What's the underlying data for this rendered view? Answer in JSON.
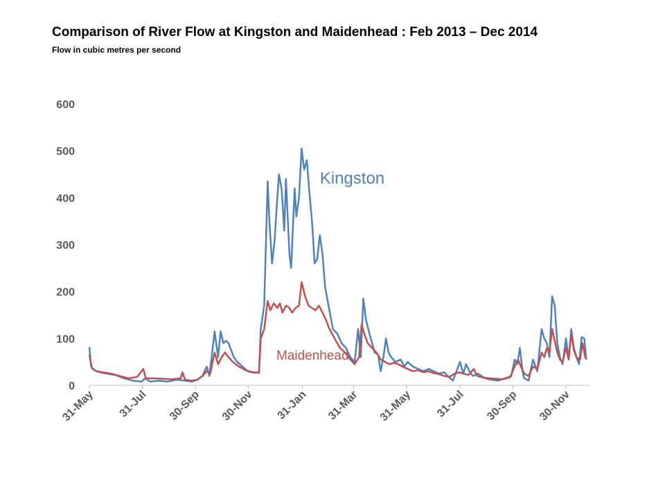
{
  "chart_data": {
    "type": "line",
    "title": "Comparison of River Flow at Kingston and Maidenhead : Feb 2013 – Dec 2014",
    "subtitle": "Flow in cubic metres per second",
    "xlabel": "",
    "ylabel": "",
    "ylim": [
      0,
      600
    ],
    "yticks": [
      "0",
      "100",
      "200",
      "300",
      "400",
      "500",
      "600"
    ],
    "xlim": [
      0,
      575
    ],
    "xticks": [
      {
        "label": "31-May",
        "x": 0
      },
      {
        "label": "31-Jul",
        "x": 61
      },
      {
        "label": "30-Sep",
        "x": 122
      },
      {
        "label": "30-Nov",
        "x": 183
      },
      {
        "label": "31-Jan",
        "x": 245
      },
      {
        "label": "31-Mar",
        "x": 304
      },
      {
        "label": "31-May",
        "x": 365
      },
      {
        "label": "31-Jul",
        "x": 426
      },
      {
        "label": "30-Sep",
        "x": 487
      },
      {
        "label": "30-Nov",
        "x": 548
      }
    ],
    "grid": false,
    "series": [
      {
        "name": "Kingston",
        "color": "#4F81BD",
        "points": [
          [
            0,
            82
          ],
          [
            2,
            40
          ],
          [
            6,
            32
          ],
          [
            12,
            28
          ],
          [
            20,
            25
          ],
          [
            30,
            22
          ],
          [
            40,
            15
          ],
          [
            50,
            10
          ],
          [
            60,
            8
          ],
          [
            64,
            15
          ],
          [
            70,
            8
          ],
          [
            80,
            10
          ],
          [
            90,
            8
          ],
          [
            100,
            12
          ],
          [
            110,
            10
          ],
          [
            118,
            8
          ],
          [
            124,
            12
          ],
          [
            130,
            20
          ],
          [
            135,
            40
          ],
          [
            138,
            20
          ],
          [
            144,
            115
          ],
          [
            148,
            60
          ],
          [
            151,
            115
          ],
          [
            154,
            90
          ],
          [
            157,
            95
          ],
          [
            160,
            90
          ],
          [
            163,
            75
          ],
          [
            166,
            60
          ],
          [
            170,
            50
          ],
          [
            176,
            40
          ],
          [
            182,
            30
          ],
          [
            188,
            27
          ],
          [
            195,
            28
          ],
          [
            197,
            120
          ],
          [
            201,
            170
          ],
          [
            205,
            435
          ],
          [
            207,
            350
          ],
          [
            210,
            260
          ],
          [
            213,
            310
          ],
          [
            215,
            370
          ],
          [
            218,
            450
          ],
          [
            221,
            420
          ],
          [
            224,
            330
          ],
          [
            226,
            440
          ],
          [
            230,
            280
          ],
          [
            232,
            250
          ],
          [
            236,
            420
          ],
          [
            238,
            360
          ],
          [
            241,
            400
          ],
          [
            244,
            505
          ],
          [
            247,
            460
          ],
          [
            250,
            480
          ],
          [
            253,
            410
          ],
          [
            256,
            350
          ],
          [
            259,
            260
          ],
          [
            262,
            270
          ],
          [
            265,
            320
          ],
          [
            268,
            280
          ],
          [
            271,
            210
          ],
          [
            275,
            170
          ],
          [
            280,
            120
          ],
          [
            285,
            110
          ],
          [
            290,
            90
          ],
          [
            295,
            80
          ],
          [
            300,
            60
          ],
          [
            305,
            50
          ],
          [
            309,
            120
          ],
          [
            312,
            60
          ],
          [
            315,
            185
          ],
          [
            318,
            140
          ],
          [
            322,
            110
          ],
          [
            325,
            90
          ],
          [
            328,
            70
          ],
          [
            332,
            65
          ],
          [
            335,
            30
          ],
          [
            338,
            60
          ],
          [
            341,
            100
          ],
          [
            344,
            70
          ],
          [
            347,
            60
          ],
          [
            352,
            50
          ],
          [
            358,
            55
          ],
          [
            362,
            40
          ],
          [
            366,
            50
          ],
          [
            372,
            40
          ],
          [
            378,
            35
          ],
          [
            384,
            30
          ],
          [
            390,
            35
          ],
          [
            396,
            30
          ],
          [
            402,
            25
          ],
          [
            408,
            28
          ],
          [
            412,
            20
          ],
          [
            418,
            10
          ],
          [
            422,
            30
          ],
          [
            426,
            50
          ],
          [
            430,
            25
          ],
          [
            433,
            45
          ],
          [
            437,
            30
          ],
          [
            441,
            20
          ],
          [
            447,
            25
          ],
          [
            455,
            15
          ],
          [
            462,
            12
          ],
          [
            470,
            10
          ],
          [
            478,
            15
          ],
          [
            485,
            20
          ],
          [
            489,
            55
          ],
          [
            492,
            45
          ],
          [
            495,
            80
          ],
          [
            498,
            30
          ],
          [
            500,
            15
          ],
          [
            505,
            10
          ],
          [
            510,
            55
          ],
          [
            515,
            30
          ],
          [
            520,
            120
          ],
          [
            523,
            100
          ],
          [
            526,
            90
          ],
          [
            529,
            60
          ],
          [
            532,
            190
          ],
          [
            535,
            170
          ],
          [
            538,
            90
          ],
          [
            541,
            60
          ],
          [
            544,
            45
          ],
          [
            548,
            100
          ],
          [
            551,
            55
          ],
          [
            554,
            120
          ],
          [
            557,
            80
          ],
          [
            560,
            60
          ],
          [
            563,
            45
          ],
          [
            566,
            103
          ],
          [
            569,
            100
          ],
          [
            571,
            60
          ]
        ]
      },
      {
        "name": "Maidenhead",
        "color": "#C0504D",
        "points": [
          [
            0,
            65
          ],
          [
            3,
            36
          ],
          [
            8,
            30
          ],
          [
            15,
            28
          ],
          [
            25,
            25
          ],
          [
            35,
            20
          ],
          [
            45,
            15
          ],
          [
            55,
            18
          ],
          [
            62,
            35
          ],
          [
            65,
            15
          ],
          [
            75,
            15
          ],
          [
            85,
            14
          ],
          [
            95,
            13
          ],
          [
            105,
            15
          ],
          [
            107,
            28
          ],
          [
            110,
            12
          ],
          [
            118,
            10
          ],
          [
            124,
            12
          ],
          [
            130,
            20
          ],
          [
            135,
            30
          ],
          [
            139,
            25
          ],
          [
            144,
            70
          ],
          [
            148,
            45
          ],
          [
            152,
            60
          ],
          [
            156,
            70
          ],
          [
            160,
            60
          ],
          [
            165,
            50
          ],
          [
            172,
            40
          ],
          [
            180,
            32
          ],
          [
            188,
            28
          ],
          [
            195,
            27
          ],
          [
            197,
            100
          ],
          [
            201,
            120
          ],
          [
            205,
            180
          ],
          [
            208,
            160
          ],
          [
            212,
            175
          ],
          [
            216,
            165
          ],
          [
            219,
            175
          ],
          [
            222,
            155
          ],
          [
            226,
            170
          ],
          [
            230,
            165
          ],
          [
            233,
            155
          ],
          [
            237,
            165
          ],
          [
            241,
            170
          ],
          [
            244,
            220
          ],
          [
            248,
            190
          ],
          [
            252,
            170
          ],
          [
            256,
            165
          ],
          [
            260,
            160
          ],
          [
            264,
            170
          ],
          [
            268,
            155
          ],
          [
            272,
            140
          ],
          [
            276,
            120
          ],
          [
            282,
            100
          ],
          [
            288,
            80
          ],
          [
            294,
            70
          ],
          [
            300,
            55
          ],
          [
            305,
            45
          ],
          [
            310,
            60
          ],
          [
            313,
            130
          ],
          [
            316,
            110
          ],
          [
            320,
            90
          ],
          [
            325,
            80
          ],
          [
            330,
            70
          ],
          [
            335,
            55
          ],
          [
            340,
            50
          ],
          [
            345,
            45
          ],
          [
            350,
            48
          ],
          [
            355,
            45
          ],
          [
            360,
            40
          ],
          [
            366,
            35
          ],
          [
            372,
            30
          ],
          [
            378,
            32
          ],
          [
            384,
            28
          ],
          [
            390,
            30
          ],
          [
            396,
            26
          ],
          [
            402,
            24
          ],
          [
            408,
            20
          ],
          [
            414,
            18
          ],
          [
            420,
            25
          ],
          [
            425,
            28
          ],
          [
            430,
            25
          ],
          [
            436,
            22
          ],
          [
            442,
            35
          ],
          [
            446,
            20
          ],
          [
            452,
            17
          ],
          [
            460,
            15
          ],
          [
            468,
            14
          ],
          [
            476,
            13
          ],
          [
            484,
            18
          ],
          [
            490,
            45
          ],
          [
            493,
            55
          ],
          [
            496,
            40
          ],
          [
            500,
            25
          ],
          [
            505,
            20
          ],
          [
            510,
            40
          ],
          [
            515,
            35
          ],
          [
            520,
            70
          ],
          [
            523,
            60
          ],
          [
            526,
            80
          ],
          [
            529,
            70
          ],
          [
            532,
            120
          ],
          [
            535,
            95
          ],
          [
            538,
            70
          ],
          [
            541,
            55
          ],
          [
            544,
            50
          ],
          [
            548,
            80
          ],
          [
            551,
            55
          ],
          [
            554,
            110
          ],
          [
            557,
            75
          ],
          [
            560,
            60
          ],
          [
            564,
            55
          ],
          [
            567,
            90
          ],
          [
            570,
            60
          ],
          [
            572,
            55
          ]
        ]
      }
    ],
    "annotations": [
      {
        "text": "Kingston",
        "series": "Kingston",
        "x": 265,
        "y": 430
      },
      {
        "text": "Maidenhead",
        "series": "Maidenhead",
        "x": 215,
        "y": 55
      }
    ]
  }
}
